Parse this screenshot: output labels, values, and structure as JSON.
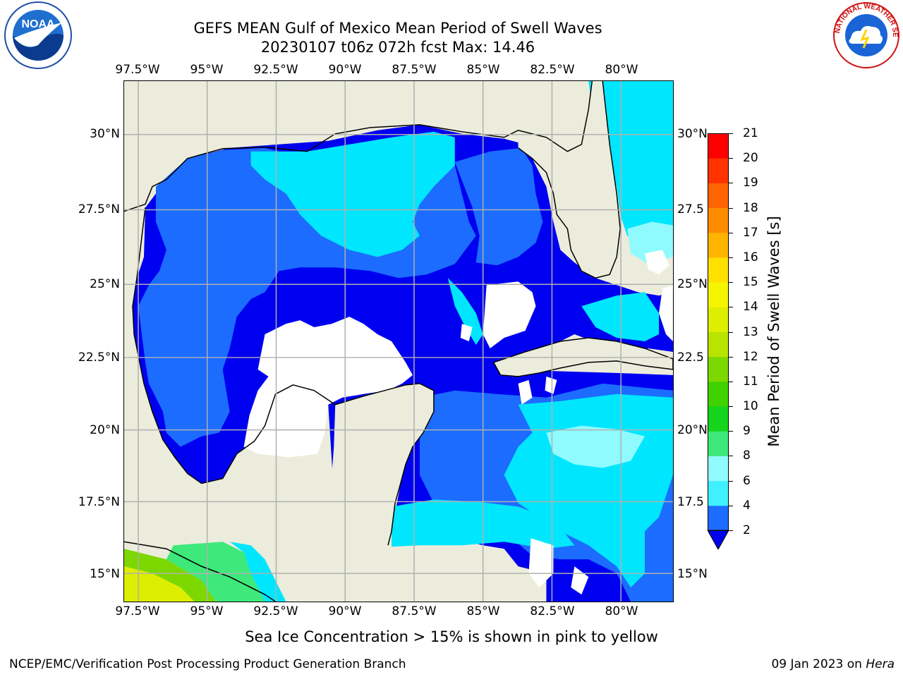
{
  "title_line1": "GEFS MEAN Gulf of Mexico Mean Period of Swell Waves",
  "title_line2": "20230107 t06z 072h fcst   Max: 14.46",
  "lon_ticks": [
    "97.5°W",
    "95°W",
    "92.5°W",
    "90°W",
    "87.5°W",
    "85°W",
    "82.5°W",
    "80°W"
  ],
  "lat_ticks_left": [
    "30°N",
    "27.5°N",
    "25°N",
    "22.5°N",
    "20°N",
    "17.5°N",
    "15°N"
  ],
  "lat_ticks_right": [
    "30°N",
    "27.5",
    "25°N",
    "22.5",
    "20°N",
    "17.5",
    "15°N"
  ],
  "colorbar": {
    "title": "Mean Period of Swell Waves [s]",
    "labels": [
      "2",
      "4",
      "6",
      "8",
      "9",
      "10",
      "11",
      "12",
      "13",
      "14",
      "15",
      "16",
      "17",
      "18",
      "19",
      "20",
      "21"
    ],
    "colors": [
      "#1c6cff",
      "#00e6ff",
      "#40f0ff",
      "#90fbff",
      "#3ee87a",
      "#14d41e",
      "#3fd200",
      "#7cd800",
      "#b8e400",
      "#ddee00",
      "#f5f500",
      "#ffe100",
      "#ffb400",
      "#ff8c00",
      "#ff6400",
      "#ff3300",
      "#ff0000"
    ],
    "under_color": "#0000ee"
  },
  "colors": {
    "land": "#ececdc",
    "deep_blue": "#0000f0",
    "blue": "#1c6cff",
    "cyan": "#00e6ff",
    "light_cyan": "#90fbff",
    "grid": "#b0b0b0"
  },
  "logos": {
    "noaa_text": "NOAA",
    "nws_text": "NATIONAL WEATHER SERVICE"
  },
  "note": "Sea Ice Concentration > 15% is shown in pink to yellow",
  "footer_left": "NCEP/EMC/Verification Post Processing Product Generation Branch",
  "footer_date": "09 Jan 2023 on ",
  "footer_machine": "Hera"
}
